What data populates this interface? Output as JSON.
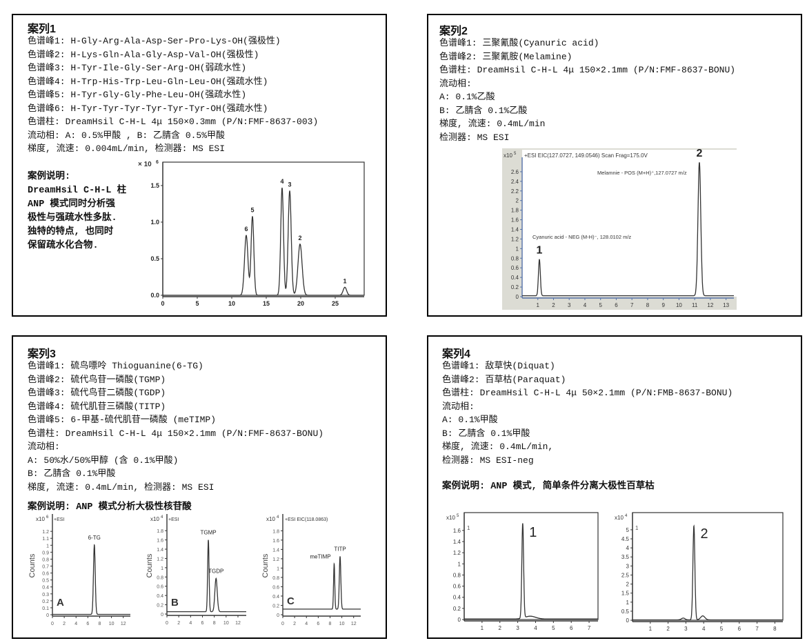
{
  "case1": {
    "title": "案列1",
    "lines": [
      "色谱峰1: H-Gly-Arg-Ala-Asp-Ser-Pro-Lys-OH(强极性)",
      "色谱峰2: H-Lys-Gln-Ala-Gly-Asp-Val-OH(强极性)",
      "色谱峰3: H-Tyr-Ile-Gly-Ser-Arg-OH(弱疏水性)",
      "色谱峰4: H-Trp-His-Trp-Leu-Gln-Leu-OH(强疏水性)",
      "色谱峰5: H-Tyr-Gly-Gly-Phe-Leu-OH(强疏水性)",
      "色谱峰6: H-Tyr-Tyr-Tyr-Tyr-Tyr-Tyr-OH(强疏水性)",
      "色谱柱: DreamHsil C-H-L 4μ 150×0.3mm (P/N:FMF-8637-003)",
      "流动相: A: 0.5%甲酸 , B: 乙腈含 0.5%甲酸",
      "梯度, 流速: 0.004mL/min, 检测器: MS ESI"
    ],
    "note": [
      "案例说明:",
      "DreamHsil C-H-L 柱",
      "ANP 模式同时分析强",
      "极性与强疏水性多肽.",
      "独特的特点, 也同时",
      "保留疏水化合物."
    ]
  },
  "case2": {
    "title": "案列2",
    "lines": [
      "色谱峰1: 三聚氰酸(Cyanuric acid)",
      "色谱峰2: 三聚氰胺(Melamine)",
      "色谱柱: DreamHsil C-H-L 4μ 150×2.1mm (P/N:FMF-8637-BONU)",
      "流动相:",
      "A: 0.1%乙酸",
      "B: 乙腈含 0.1%乙酸",
      "梯度, 流速: 0.4mL/min",
      "检测器: MS ESI"
    ]
  },
  "case3": {
    "title": "案列3",
    "lines": [
      "色谱峰1: 硫鸟嘌呤 Thioguanine(6-TG)",
      "色谱峰2: 硫代鸟苷一磷酸(TGMP)",
      "色谱峰3: 硫代鸟苷二磷酸(TGDP)",
      "色谱峰4: 硫代肌苷三磷酸(TITP)",
      "色谱峰5: 6-甲基-硫代肌苷一磷酸 (meTIMP)",
      "色谱柱: DreamHsil C-H-L 4μ 150×2.1mm (P/N:FMF-8637-BONU)",
      "流动相:",
      "A: 50%水/50%甲醇 (含 0.1%甲酸)",
      "B: 乙腈含 0.1%甲酸",
      "梯度, 流速: 0.4mL/min, 检测器: MS ESI"
    ],
    "note": "案例说明: ANP 模式分析大极性核苷酸"
  },
  "case4": {
    "title": "案列4",
    "lines": [
      "色谱峰1: 敌草快(Diquat)",
      "色谱峰2: 百草枯(Paraquat)",
      "色谱柱: DreamHsil C-H-L 4μ 50×2.1mm (P/N:FMB-8637-BONU)",
      "流动相:",
      "A: 0.1%甲酸",
      "B: 乙腈含 0.1%甲酸",
      "梯度, 流速: 0.4mL/min,",
      "检测器: MS ESI-neg"
    ],
    "note": "案例说明: ANP 模式, 简单条件分离大极性百草枯"
  },
  "chart_data": [
    {
      "type": "line",
      "xlim": [
        0,
        29.2
      ],
      "ylim": [
        0,
        1.82
      ],
      "xticks": [
        0,
        5,
        10,
        15,
        20,
        25
      ],
      "yticks": [
        "0.0",
        "0.5",
        "1.0",
        "1.5"
      ],
      "y_multiplier": "× 10",
      "y_exponent": "6",
      "baseline": 0.0,
      "peaks": [
        {
          "label": "6",
          "rt": 12.1,
          "height": 0.82,
          "sigma": 0.25
        },
        {
          "label": "5",
          "rt": 13.0,
          "height": 1.08,
          "sigma": 0.2
        },
        {
          "label": "4",
          "rt": 17.3,
          "height": 1.47,
          "sigma": 0.2
        },
        {
          "label": "3",
          "rt": 18.4,
          "height": 1.43,
          "sigma": 0.22
        },
        {
          "label": "2",
          "rt": 19.9,
          "height": 0.7,
          "sigma": 0.3
        },
        {
          "label": "1",
          "rt": 26.4,
          "height": 0.11,
          "sigma": 0.25
        }
      ]
    },
    {
      "type": "line",
      "xlim": [
        0,
        13.5
      ],
      "ylim": [
        0,
        2.9
      ],
      "xticks": [
        1,
        2,
        3,
        4,
        5,
        6,
        7,
        8,
        9,
        10,
        11,
        12,
        13
      ],
      "yticks": [
        "0",
        "0.2",
        "0.4",
        "0.6",
        "0.8",
        "1",
        "1.2",
        "1.4",
        "1.6",
        "1.8",
        "2",
        "2.2",
        "2.4",
        "2.6"
      ],
      "y_multiplier": "x10",
      "y_exponent": "5",
      "baseline": 0.02,
      "header": "+ESI EIC(127.0727, 149.0546) Scan Frag=175.0V",
      "annotations": [
        "Melamnie - POS (M+H)⁺,127.0727 m/z",
        "Cyanuric acid -  NEG (M-H)⁻, 128.0102 m/z"
      ],
      "peaks": [
        {
          "label": "1",
          "rt": 1.1,
          "height": 0.76,
          "sigma": 0.06
        },
        {
          "label": "2",
          "rt": 11.3,
          "height": 2.78,
          "sigma": 0.09
        }
      ]
    },
    {
      "type": "line",
      "xlim": [
        0,
        13.2
      ],
      "ylim": [
        0,
        1.45
      ],
      "xticks": [
        0,
        2,
        4,
        6,
        8,
        10,
        12
      ],
      "yticks": [
        "0",
        "0.1",
        "0.2",
        "0.3",
        "0.4",
        "0.5",
        "0.6",
        "0.7",
        "0.8",
        "0.9",
        "1",
        "1.1",
        "1.2"
      ],
      "y_multiplier": "x10",
      "y_exponent": "6",
      "header": "+ESI",
      "ylabel": "Counts",
      "panel_label": "A",
      "baseline": 0.005,
      "peaks": [
        {
          "label": "6-TG",
          "rt": 7.1,
          "height": 1.0,
          "sigma": 0.15
        }
      ]
    },
    {
      "type": "line",
      "xlim": [
        0,
        13.4
      ],
      "ylim": [
        0,
        2.16
      ],
      "xticks": [
        0,
        2,
        4,
        6,
        8,
        10,
        12
      ],
      "yticks": [
        "0",
        "0.2",
        "0.4",
        "0.6",
        "0.8",
        "1",
        "1.2",
        "1.4",
        "1.6",
        "1.8"
      ],
      "y_multiplier": "x10",
      "y_exponent": "4",
      "header": "+ESI",
      "ylabel": "Counts",
      "panel_label": "B",
      "baseline": 0.05,
      "peaks": [
        {
          "label": "TGMP",
          "rt": 7.0,
          "height": 1.55,
          "sigma": 0.12
        },
        {
          "label": "TGDP",
          "rt": 8.3,
          "height": 0.72,
          "sigma": 0.2
        }
      ]
    },
    {
      "type": "line",
      "xlim": [
        0,
        13.2
      ],
      "ylim": [
        0,
        2.16
      ],
      "xticks": [
        0,
        2,
        4,
        6,
        8,
        10,
        12
      ],
      "yticks": [
        "0",
        "0.2",
        "0.4",
        "0.6",
        "0.8",
        "1",
        "1.2",
        "1.4",
        "1.6",
        "1.8"
      ],
      "y_multiplier": "x10",
      "y_exponent": "4",
      "header": "+ESI  EIC(118.0863)",
      "ylabel": "Counts",
      "panel_label": "C",
      "baseline": 0.12,
      "peaks": [
        {
          "label": "meTIMP",
          "rt": 8.7,
          "height": 0.97,
          "sigma": 0.1
        },
        {
          "label": "TITP",
          "rt": 9.7,
          "height": 1.13,
          "sigma": 0.13
        }
      ]
    },
    {
      "type": "line",
      "xlim": [
        0,
        7.5
      ],
      "ylim": [
        0,
        1.92
      ],
      "xticks": [
        1,
        2,
        3,
        4,
        5,
        6,
        7
      ],
      "yticks": [
        "0",
        "0.2",
        "0.4",
        "0.6",
        "0.8",
        "1",
        "1.2",
        "1.4",
        "1.6"
      ],
      "y_multiplier": "x10",
      "y_exponent": "5",
      "trace_id": "1",
      "baseline": 0.01,
      "peaks": [
        {
          "label": "1",
          "rt": 3.28,
          "height": 1.7,
          "sigma": 0.05
        },
        {
          "label": "",
          "rt": 3.7,
          "height": 0.05,
          "sigma": 0.3
        }
      ]
    },
    {
      "type": "line",
      "xlim": [
        0,
        8.45
      ],
      "ylim": [
        0,
        5.95
      ],
      "xticks": [
        1,
        2,
        3,
        4,
        5,
        6,
        7,
        8
      ],
      "yticks": [
        "0",
        "0.5",
        "1",
        "1.5",
        "2",
        "2.5",
        "3",
        "3.5",
        "4",
        "4.5",
        "5"
      ],
      "y_multiplier": "x10",
      "y_exponent": "4",
      "trace_id": "1",
      "baseline": 0.02,
      "peaks": [
        {
          "label": "2",
          "rt": 3.45,
          "height": 5.2,
          "sigma": 0.055
        },
        {
          "label": "",
          "rt": 2.85,
          "height": 0.1,
          "sigma": 0.1
        },
        {
          "label": "",
          "rt": 3.95,
          "height": 0.22,
          "sigma": 0.12
        }
      ]
    }
  ]
}
